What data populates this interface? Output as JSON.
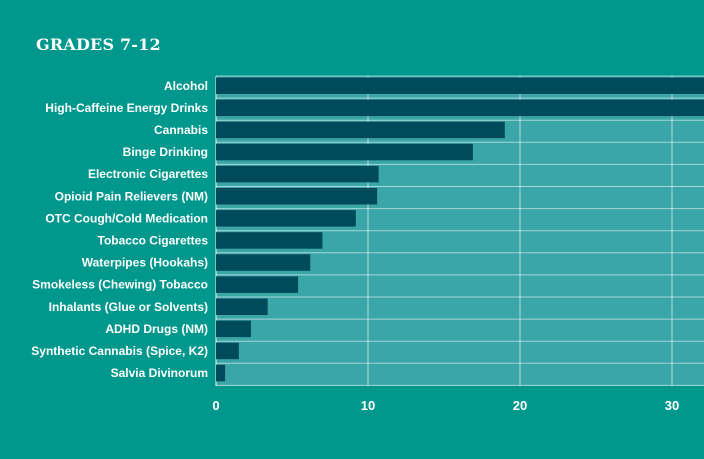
{
  "chart_data": {
    "type": "bar",
    "orientation": "horizontal",
    "title": "GRADES 7-12",
    "xlabel": "",
    "ylabel": "",
    "categories": [
      "Alcohol",
      "High-Caffeine Energy Drinks",
      "Cannabis",
      "Binge Drinking",
      "Electronic Cigarettes",
      "Opioid Pain Relievers (NM)",
      "OTC Cough/Cold Medication",
      "Tobacco Cigarettes",
      "Waterpipes (Hookahs)",
      "Smokeless (Chewing) Tobacco",
      "Inhalants (Glue or Solvents)",
      "ADHD Drugs (NM)",
      "Synthetic Cannabis (Spice, K2)",
      "Salvia Divinorum"
    ],
    "values": [
      33,
      32.5,
      19,
      16.9,
      10.7,
      10.6,
      9.2,
      7,
      6.2,
      5.4,
      3.4,
      2.3,
      1.5,
      0.6
    ],
    "xticks": [
      0,
      10,
      20,
      30
    ],
    "xlim": [
      0,
      32.3
    ],
    "grid": true,
    "legend": "none",
    "colors": {
      "background": "#00978d",
      "plot_area": "#3aa6a8",
      "bar": "#004b5b",
      "grid": "#ffffff",
      "text": "#ffffff"
    }
  }
}
